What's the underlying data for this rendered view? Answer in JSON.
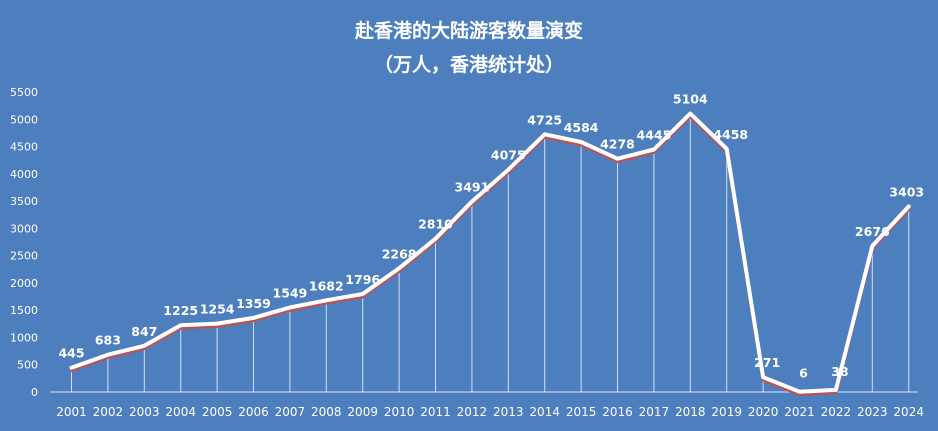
{
  "chart_data": {
    "type": "line",
    "title": "赴香港的大陆游客数量演变",
    "subtitle": "（万人，香港统计处）",
    "categories": [
      "2001",
      "2002",
      "2003",
      "2004",
      "2005",
      "2006",
      "2007",
      "2008",
      "2009",
      "2010",
      "2011",
      "2012",
      "2013",
      "2014",
      "2015",
      "2016",
      "2017",
      "2018",
      "2019",
      "2020",
      "2021",
      "2022",
      "2023",
      "2024"
    ],
    "values": [
      445,
      683,
      847,
      1225,
      1254,
      1359,
      1549,
      1682,
      1796,
      2268,
      2810,
      3491,
      4075,
      4725,
      4584,
      4278,
      4445,
      5104,
      4458,
      271,
      6,
      38,
      2676,
      3403
    ],
    "ylim": [
      0,
      5500
    ],
    "yticks": [
      0,
      500,
      1000,
      1500,
      2000,
      2500,
      3000,
      3500,
      4000,
      4500,
      5000,
      5500
    ],
    "grid": false,
    "drop_lines": true,
    "data_labels": true,
    "colors": {
      "background": "#4d7fbf",
      "line": "#ffffff",
      "line_shadow": "#c0504d",
      "text": "#ffffff"
    }
  }
}
